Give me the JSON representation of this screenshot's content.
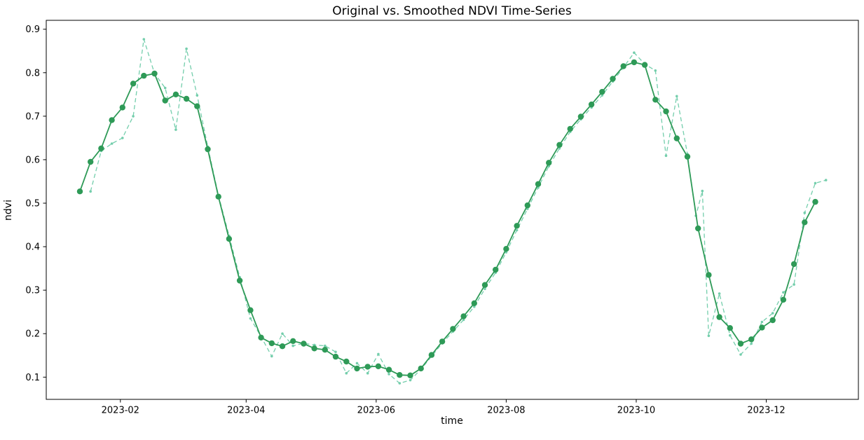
{
  "figure": {
    "title": "Original vs. Smoothed NDVI Time-Series",
    "xlabel": "time",
    "ylabel": "ndvi",
    "background": "#ffffff",
    "spine_color": "#000000"
  },
  "chart_data": {
    "type": "line",
    "title": "Original vs. Smoothed NDVI Time-Series",
    "xlabel": "time",
    "ylabel": "ndvi",
    "grid": false,
    "legend_position": "none",
    "x_axis": {
      "kind": "date",
      "tick_labels": [
        "2023-02",
        "2023-04",
        "2023-06",
        "2023-08",
        "2023-10",
        "2023-12"
      ],
      "tick_dates": [
        "2023-02-01",
        "2023-04-01",
        "2023-06-01",
        "2023-08-01",
        "2023-10-01",
        "2023-12-01"
      ],
      "range": [
        "2022-12-28",
        "2024-01-14"
      ]
    },
    "y_axis": {
      "tick_labels": [
        "0.1",
        "0.2",
        "0.3",
        "0.4",
        "0.5",
        "0.6",
        "0.7",
        "0.8",
        "0.9"
      ],
      "ticks": [
        0.1,
        0.2,
        0.3,
        0.4,
        0.5,
        0.6,
        0.7,
        0.8,
        0.9
      ],
      "range": [
        0.046,
        0.917
      ]
    },
    "series": [
      {
        "name": "original",
        "line_style": "dashed",
        "color": "#74ceac",
        "marker": "small-dot",
        "points": [
          [
            "2023-01-18",
            0.527
          ],
          [
            "2023-01-23",
            0.62
          ],
          [
            "2023-01-28",
            0.637
          ],
          [
            "2023-02-02",
            0.65
          ],
          [
            "2023-02-07",
            0.7
          ],
          [
            "2023-02-12",
            0.877
          ],
          [
            "2023-02-17",
            0.798
          ],
          [
            "2023-02-22",
            0.765
          ],
          [
            "2023-02-27",
            0.669
          ],
          [
            "2023-03-04",
            0.855
          ],
          [
            "2023-03-09",
            0.748
          ],
          [
            "2023-03-14",
            0.63
          ],
          [
            "2023-03-19",
            0.518
          ],
          [
            "2023-03-24",
            0.425
          ],
          [
            "2023-03-29",
            0.33
          ],
          [
            "2023-04-03",
            0.235
          ],
          [
            "2023-04-08",
            0.193
          ],
          [
            "2023-04-13",
            0.148
          ],
          [
            "2023-04-18",
            0.2
          ],
          [
            "2023-04-23",
            0.172
          ],
          [
            "2023-04-28",
            0.178
          ],
          [
            "2023-05-03",
            0.174
          ],
          [
            "2023-05-08",
            0.172
          ],
          [
            "2023-05-13",
            0.158
          ],
          [
            "2023-05-18",
            0.109
          ],
          [
            "2023-05-23",
            0.132
          ],
          [
            "2023-05-28",
            0.109
          ],
          [
            "2023-06-02",
            0.153
          ],
          [
            "2023-06-07",
            0.107
          ],
          [
            "2023-06-12",
            0.086
          ],
          [
            "2023-06-17",
            0.093
          ],
          [
            "2023-06-22",
            0.118
          ],
          [
            "2023-06-27",
            0.148
          ],
          [
            "2023-07-02",
            0.178
          ],
          [
            "2023-07-07",
            0.205
          ],
          [
            "2023-07-12",
            0.232
          ],
          [
            "2023-07-17",
            0.262
          ],
          [
            "2023-07-22",
            0.303
          ],
          [
            "2023-07-27",
            0.34
          ],
          [
            "2023-08-01",
            0.387
          ],
          [
            "2023-08-06",
            0.438
          ],
          [
            "2023-08-11",
            0.487
          ],
          [
            "2023-08-16",
            0.536
          ],
          [
            "2023-08-21",
            0.585
          ],
          [
            "2023-08-26",
            0.626
          ],
          [
            "2023-08-31",
            0.664
          ],
          [
            "2023-09-05",
            0.693
          ],
          [
            "2023-09-10",
            0.72
          ],
          [
            "2023-09-15",
            0.748
          ],
          [
            "2023-09-20",
            0.78
          ],
          [
            "2023-09-25",
            0.812
          ],
          [
            "2023-09-30",
            0.846
          ],
          [
            "2023-10-05",
            0.82
          ],
          [
            "2023-10-10",
            0.805
          ],
          [
            "2023-10-15",
            0.609
          ],
          [
            "2023-10-20",
            0.746
          ],
          [
            "2023-10-25",
            0.613
          ],
          [
            "2023-10-29",
            0.471
          ],
          [
            "2023-11-01",
            0.528
          ],
          [
            "2023-11-04",
            0.195
          ],
          [
            "2023-11-09",
            0.292
          ],
          [
            "2023-11-14",
            0.196
          ],
          [
            "2023-11-19",
            0.152
          ],
          [
            "2023-11-24",
            0.177
          ],
          [
            "2023-11-29",
            0.227
          ],
          [
            "2023-12-04",
            0.247
          ],
          [
            "2023-12-09",
            0.295
          ],
          [
            "2023-12-14",
            0.313
          ],
          [
            "2023-12-19",
            0.478
          ],
          [
            "2023-12-24",
            0.546
          ],
          [
            "2023-12-29",
            0.553
          ]
        ]
      },
      {
        "name": "smoothed",
        "line_style": "solid",
        "color": "#2e9a57",
        "marker": "circle",
        "points": [
          [
            "2023-01-13",
            0.527
          ],
          [
            "2023-01-18",
            0.595
          ],
          [
            "2023-01-23",
            0.626
          ],
          [
            "2023-01-28",
            0.691
          ],
          [
            "2023-02-02",
            0.72
          ],
          [
            "2023-02-07",
            0.775
          ],
          [
            "2023-02-12",
            0.793
          ],
          [
            "2023-02-17",
            0.798
          ],
          [
            "2023-02-22",
            0.736
          ],
          [
            "2023-02-27",
            0.75
          ],
          [
            "2023-03-04",
            0.74
          ],
          [
            "2023-03-09",
            0.723
          ],
          [
            "2023-03-14",
            0.624
          ],
          [
            "2023-03-19",
            0.515
          ],
          [
            "2023-03-24",
            0.418
          ],
          [
            "2023-03-29",
            0.322
          ],
          [
            "2023-04-03",
            0.254
          ],
          [
            "2023-04-08",
            0.191
          ],
          [
            "2023-04-13",
            0.178
          ],
          [
            "2023-04-18",
            0.171
          ],
          [
            "2023-04-23",
            0.183
          ],
          [
            "2023-04-28",
            0.177
          ],
          [
            "2023-05-03",
            0.166
          ],
          [
            "2023-05-08",
            0.163
          ],
          [
            "2023-05-13",
            0.147
          ],
          [
            "2023-05-18",
            0.136
          ],
          [
            "2023-05-23",
            0.12
          ],
          [
            "2023-05-28",
            0.124
          ],
          [
            "2023-06-02",
            0.125
          ],
          [
            "2023-06-07",
            0.117
          ],
          [
            "2023-06-12",
            0.105
          ],
          [
            "2023-06-17",
            0.104
          ],
          [
            "2023-06-22",
            0.12
          ],
          [
            "2023-06-27",
            0.151
          ],
          [
            "2023-07-02",
            0.182
          ],
          [
            "2023-07-07",
            0.211
          ],
          [
            "2023-07-12",
            0.24
          ],
          [
            "2023-07-17",
            0.27
          ],
          [
            "2023-07-22",
            0.312
          ],
          [
            "2023-07-27",
            0.347
          ],
          [
            "2023-08-01",
            0.395
          ],
          [
            "2023-08-06",
            0.448
          ],
          [
            "2023-08-11",
            0.495
          ],
          [
            "2023-08-16",
            0.544
          ],
          [
            "2023-08-21",
            0.593
          ],
          [
            "2023-08-26",
            0.634
          ],
          [
            "2023-08-31",
            0.671
          ],
          [
            "2023-09-05",
            0.699
          ],
          [
            "2023-09-10",
            0.727
          ],
          [
            "2023-09-15",
            0.756
          ],
          [
            "2023-09-20",
            0.786
          ],
          [
            "2023-09-25",
            0.815
          ],
          [
            "2023-09-30",
            0.824
          ],
          [
            "2023-10-05",
            0.818
          ],
          [
            "2023-10-10",
            0.738
          ],
          [
            "2023-10-15",
            0.711
          ],
          [
            "2023-10-20",
            0.649
          ],
          [
            "2023-10-25",
            0.607
          ],
          [
            "2023-10-30",
            0.442
          ],
          [
            "2023-11-04",
            0.335
          ],
          [
            "2023-11-09",
            0.238
          ],
          [
            "2023-11-14",
            0.213
          ],
          [
            "2023-11-19",
            0.177
          ],
          [
            "2023-11-24",
            0.187
          ],
          [
            "2023-11-29",
            0.214
          ],
          [
            "2023-12-04",
            0.231
          ],
          [
            "2023-12-09",
            0.278
          ],
          [
            "2023-12-14",
            0.36
          ],
          [
            "2023-12-19",
            0.456
          ],
          [
            "2023-12-24",
            0.503
          ]
        ]
      }
    ]
  }
}
